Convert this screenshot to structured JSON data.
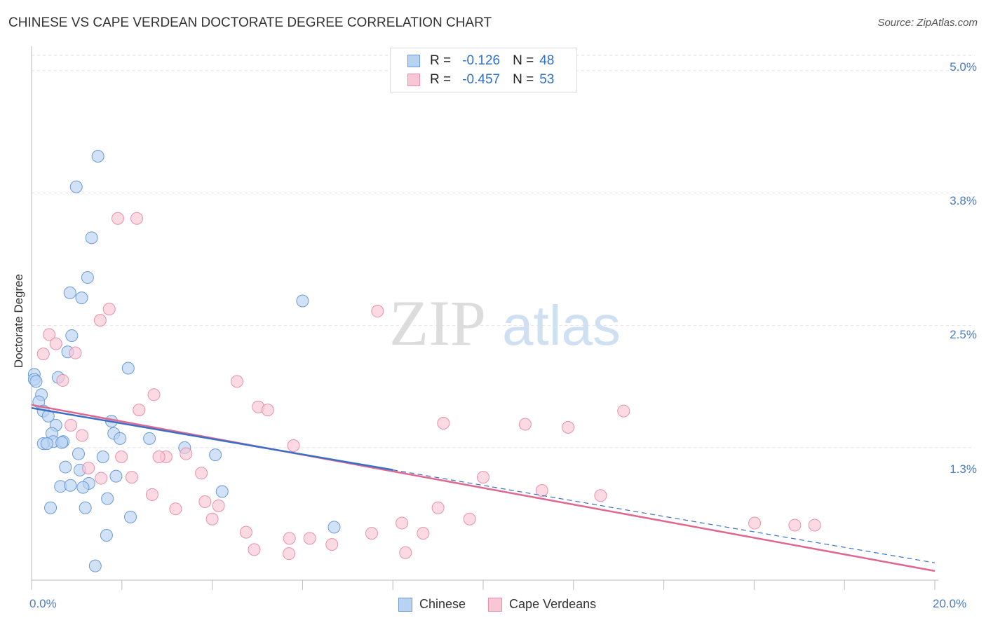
{
  "header": {
    "title": "CHINESE VS CAPE VERDEAN DOCTORATE DEGREE CORRELATION CHART",
    "source": "Source: ZipAtlas.com"
  },
  "watermark": {
    "zip": "ZIP",
    "atlas": "atlas"
  },
  "legend": {
    "r_label": "R =",
    "n_label": "N =",
    "chinese": {
      "r": "-0.126",
      "n": "48"
    },
    "cape": {
      "r": "-0.457",
      "n": "53"
    }
  },
  "colors": {
    "chinese_fill": "#b8d3f2",
    "chinese_stroke": "#6a9ad8",
    "chinese_line": "#3a6fc6",
    "cape_fill": "#f9c6d6",
    "cape_stroke": "#e890ac",
    "cape_line": "#e0688f",
    "tick_text": "#4a7cc4"
  },
  "chart_data": {
    "type": "scatter",
    "title": "CHINESE VS CAPE VERDEAN DOCTORATE DEGREE CORRELATION CHART",
    "xlabel": "",
    "ylabel": "Doctorate Degree",
    "xlim": [
      0,
      20
    ],
    "ylim": [
      0,
      5.15
    ],
    "x_tick_labels": [
      "0.0%",
      "20.0%"
    ],
    "y_ticks": [
      1.3,
      2.5,
      3.8,
      5.0
    ],
    "y_tick_labels": [
      "1.3%",
      "2.5%",
      "3.8%",
      "5.0%"
    ],
    "grid": true,
    "legend_position": "top-center",
    "series": [
      {
        "name": "Chinese",
        "r": -0.126,
        "n": 48,
        "trend": {
          "x0": 0.0,
          "y0": 1.69,
          "x_solid_end": 8.0,
          "x1": 20.0,
          "y1": 0.17
        },
        "points": [
          [
            1.47,
            4.16
          ],
          [
            0.99,
            3.86
          ],
          [
            1.33,
            3.36
          ],
          [
            1.24,
            2.97
          ],
          [
            0.85,
            2.82
          ],
          [
            1.11,
            2.77
          ],
          [
            6.0,
            2.74
          ],
          [
            0.89,
            2.4
          ],
          [
            0.8,
            2.24
          ],
          [
            2.14,
            2.08
          ],
          [
            0.06,
            2.02
          ],
          [
            0.59,
            1.99
          ],
          [
            0.06,
            1.97
          ],
          [
            0.22,
            1.82
          ],
          [
            0.16,
            1.75
          ],
          [
            0.26,
            1.66
          ],
          [
            0.37,
            1.61
          ],
          [
            1.77,
            1.56
          ],
          [
            0.54,
            1.52
          ],
          [
            0.45,
            1.44
          ],
          [
            1.82,
            1.44
          ],
          [
            1.96,
            1.39
          ],
          [
            2.61,
            1.39
          ],
          [
            0.48,
            1.36
          ],
          [
            0.7,
            1.36
          ],
          [
            0.26,
            1.34
          ],
          [
            0.34,
            1.34
          ],
          [
            0.67,
            1.35
          ],
          [
            3.39,
            1.3
          ],
          [
            1.04,
            1.24
          ],
          [
            4.07,
            1.23
          ],
          [
            1.58,
            1.21
          ],
          [
            0.75,
            1.11
          ],
          [
            1.07,
            1.08
          ],
          [
            1.87,
            1.02
          ],
          [
            1.27,
            0.95
          ],
          [
            0.64,
            0.92
          ],
          [
            0.86,
            0.93
          ],
          [
            1.14,
            0.91
          ],
          [
            4.22,
            0.87
          ],
          [
            1.68,
            0.8
          ],
          [
            0.42,
            0.71
          ],
          [
            1.19,
            0.71
          ],
          [
            2.19,
            0.62
          ],
          [
            6.7,
            0.52
          ],
          [
            1.66,
            0.44
          ],
          [
            1.41,
            0.14
          ],
          [
            0.1,
            1.95
          ]
        ]
      },
      {
        "name": "Cape Verdeans",
        "r": -0.457,
        "n": 53,
        "trend": {
          "x0": 0.0,
          "y0": 1.72,
          "x1": 20.0,
          "y1": 0.09
        },
        "points": [
          [
            1.91,
            3.55
          ],
          [
            2.33,
            3.55
          ],
          [
            1.72,
            2.66
          ],
          [
            7.66,
            2.64
          ],
          [
            1.52,
            2.55
          ],
          [
            0.39,
            2.41
          ],
          [
            0.54,
            2.32
          ],
          [
            0.26,
            2.22
          ],
          [
            0.97,
            2.23
          ],
          [
            0.69,
            1.96
          ],
          [
            4.55,
            1.95
          ],
          [
            2.71,
            1.82
          ],
          [
            5.02,
            1.7
          ],
          [
            5.23,
            1.67
          ],
          [
            2.38,
            1.67
          ],
          [
            9.12,
            1.54
          ],
          [
            13.11,
            1.66
          ],
          [
            10.93,
            1.53
          ],
          [
            11.88,
            1.5
          ],
          [
            0.87,
            1.52
          ],
          [
            1.12,
            1.42
          ],
          [
            5.8,
            1.32
          ],
          [
            3.42,
            1.24
          ],
          [
            1.99,
            1.21
          ],
          [
            2.98,
            1.21
          ],
          [
            2.82,
            1.21
          ],
          [
            1.26,
            1.1
          ],
          [
            3.76,
            1.05
          ],
          [
            1.54,
            1.0
          ],
          [
            2.22,
            1.01
          ],
          [
            10.0,
            1.01
          ],
          [
            11.3,
            0.88
          ],
          [
            12.6,
            0.83
          ],
          [
            2.67,
            0.84
          ],
          [
            3.84,
            0.77
          ],
          [
            4.14,
            0.73
          ],
          [
            3.19,
            0.7
          ],
          [
            9.0,
            0.71
          ],
          [
            4.0,
            0.6
          ],
          [
            9.7,
            0.6
          ],
          [
            8.2,
            0.56
          ],
          [
            16.01,
            0.56
          ],
          [
            16.9,
            0.54
          ],
          [
            17.34,
            0.54
          ],
          [
            4.75,
            0.47
          ],
          [
            7.53,
            0.46
          ],
          [
            8.67,
            0.46
          ],
          [
            6.16,
            0.41
          ],
          [
            5.71,
            0.41
          ],
          [
            4.93,
            0.3
          ],
          [
            6.65,
            0.35
          ],
          [
            5.7,
            0.26
          ],
          [
            8.28,
            0.27
          ]
        ]
      }
    ]
  },
  "bottom_legend": {
    "chinese": "Chinese",
    "cape": "Cape Verdeans"
  }
}
